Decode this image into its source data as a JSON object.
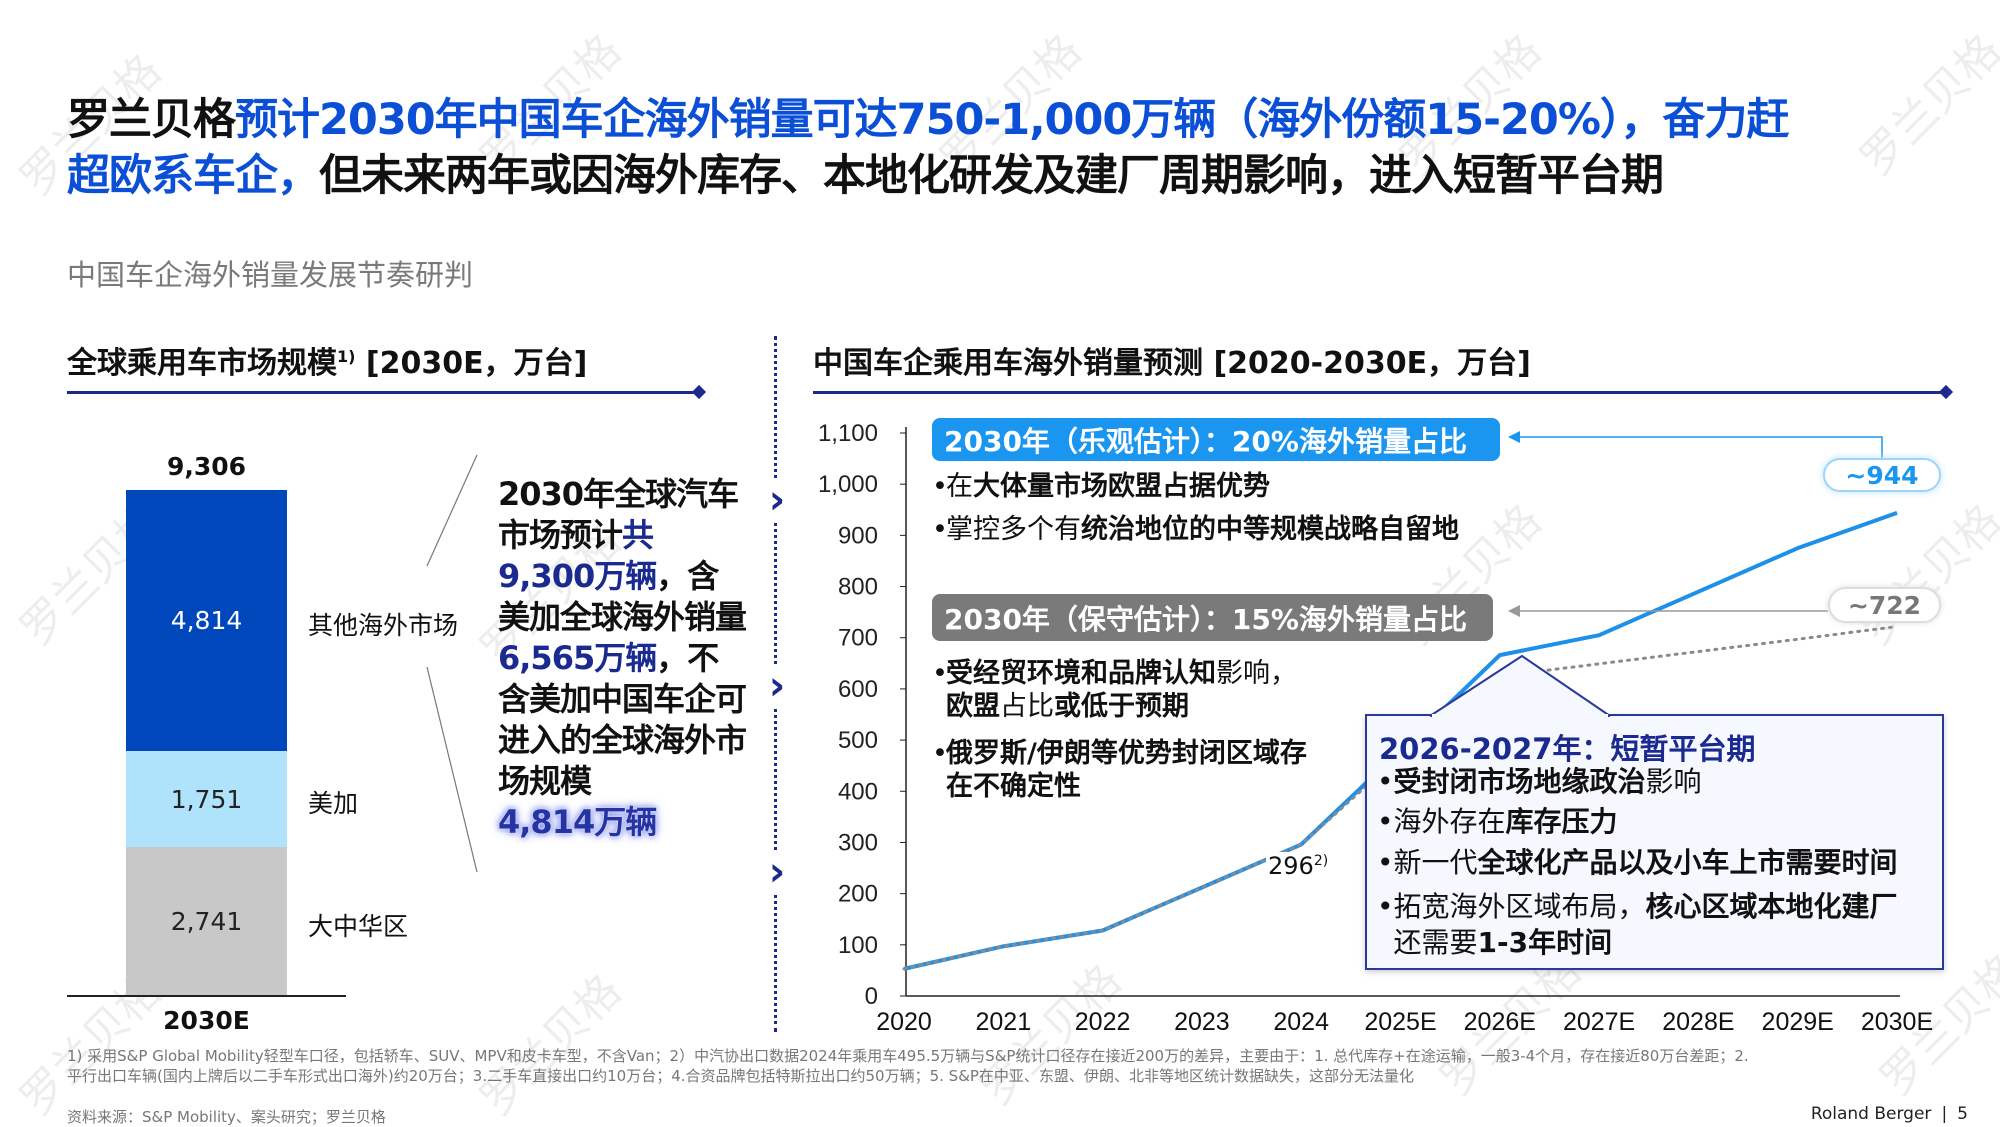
{
  "watermark": "罗兰贝格",
  "title": {
    "brand": "罗兰贝格",
    "highlight_line1": "预计2030年中国车企海外销量可达750-1,000万辆（海外份额15-20%），奋力赶",
    "highlight_line2": "超欧系车企，",
    "rest": "但未来两年或因海外库存、本地化研发及建厂周期影响，进入短暂平台期"
  },
  "subtitle": "中国车企海外销量发展节奏研判",
  "left": {
    "title": "全球乘用车市场规模",
    "title_sup": "1)",
    "title_unit": " [2030E，万台]",
    "total": "9,306",
    "x_label": "2030E",
    "segments": [
      {
        "label": "其他海外市场",
        "value": "4,814",
        "color": "#0047bb"
      },
      {
        "label": "美加",
        "value": "1,751",
        "color": "#aee3fb"
      },
      {
        "label": "大中华区",
        "value": "2,741",
        "color": "#c8c8c8"
      }
    ],
    "callout": {
      "p1": "2030年全球汽车市场预计",
      "p2": "共9,300万辆",
      "p3": "，含美加全球海外销量",
      "p4": "6,565万辆",
      "p5": "，不含美加中国车企可进入的全球海外市场规模",
      "p6": "4,814万辆"
    }
  },
  "right": {
    "title": "中国车企乘用车海外销量预测 [2020-2030E，万台]",
    "optimistic": {
      "label": "2030年（乐观估计）：20%海外销量占比",
      "color": "#1a96f0",
      "bullets": [
        [
          {
            "t": "在",
            "b": false
          },
          {
            "t": "大体量市场欧盟占据优势",
            "b": true
          }
        ],
        [
          {
            "t": "掌控多个有",
            "b": false
          },
          {
            "t": "统治地位的中等规模战略自留地",
            "b": true
          }
        ]
      ]
    },
    "conservative": {
      "label": "2030年（保守估计）：15%海外销量占比",
      "color": "#7a7a7a",
      "bullets": [
        [
          {
            "t": "受经贸环境和品牌认知",
            "b": true
          },
          {
            "t": "影响，",
            "b": false
          },
          {
            "t": "\n欧盟",
            "b": true
          },
          {
            "t": "占比",
            "b": false
          },
          {
            "t": "或低于预期",
            "b": true
          }
        ],
        [
          {
            "t": "俄罗斯/伊朗等优势封闭区域存\n在不确定性",
            "b": true
          }
        ]
      ]
    },
    "plateau": {
      "title": "2026-2027年：短暂平台期",
      "bullets": [
        [
          {
            "t": "受封闭市场地缘政治",
            "b": true
          },
          {
            "t": "影响",
            "b": false
          }
        ],
        [
          {
            "t": "海外存在",
            "b": false
          },
          {
            "t": "库存压力",
            "b": true
          }
        ],
        [
          {
            "t": "新一代",
            "b": false
          },
          {
            "t": "全球化产品以及小车上市需要时间",
            "b": true
          }
        ],
        [
          {
            "t": "拓宽海外区域布局，",
            "b": false
          },
          {
            "t": "核心区域本地化建厂\n",
            "b": true
          },
          {
            "t": "还需要",
            "b": false
          },
          {
            "t": "1-3年时间",
            "b": true
          }
        ]
      ]
    },
    "label_2024": "296",
    "label_2024_sup": "2)",
    "end_optimistic": "~944",
    "end_conservative": "~722"
  },
  "chart_data": {
    "type": "line",
    "title": "中国车企乘用车海外销量预测 [2020-2030E，万台]",
    "categories": [
      "2020",
      "2021",
      "2022",
      "2023",
      "2024",
      "2025E",
      "2026E",
      "2027E",
      "2028E",
      "2029E",
      "2030E"
    ],
    "yticks": [
      "0",
      "100",
      "200",
      "300",
      "400",
      "500",
      "600",
      "700",
      "800",
      "900",
      "1,000",
      "1,100"
    ],
    "ylim": [
      0,
      1100
    ],
    "grid": false,
    "series": [
      {
        "style": "solid",
        "color": "#1e90e8",
        "values": [
          53,
          97,
          128,
          212,
          296,
          480,
          666,
          705,
          790,
          875,
          944
        ]
      },
      {
        "style": "dotted",
        "color": "#8a8a8a",
        "values": [
          53,
          97,
          128,
          212,
          296,
          470,
          625,
          649,
          673,
          697,
          722
        ]
      }
    ]
  },
  "footnotes": {
    "line1": "1) 采用S&P Global Mobility轻型车口径，包括轿车、SUV、MPV和皮卡车型，不含Van；2）中汽协出口数据2024年乘用车495.5万辆与S&P统计口径存在接近200万的差异，主要由于：1. 总代库存+在途运输，一般3-4个月，存在接近80万台差距；2.",
    "line2": "平行出口车辆(国内上牌后以二手车形式出口海外)约20万台；3.二手车直接出口约10万台；4.合资品牌包括特斯拉出口约50万辆；5. S&P在中亚、东盟、伊朗、北非等地区统计数据缺失，这部分无法量化",
    "source": "资料来源：S&P Mobility、案头研究；罗兰贝格",
    "brand": "Roland Berger",
    "page": "5"
  }
}
